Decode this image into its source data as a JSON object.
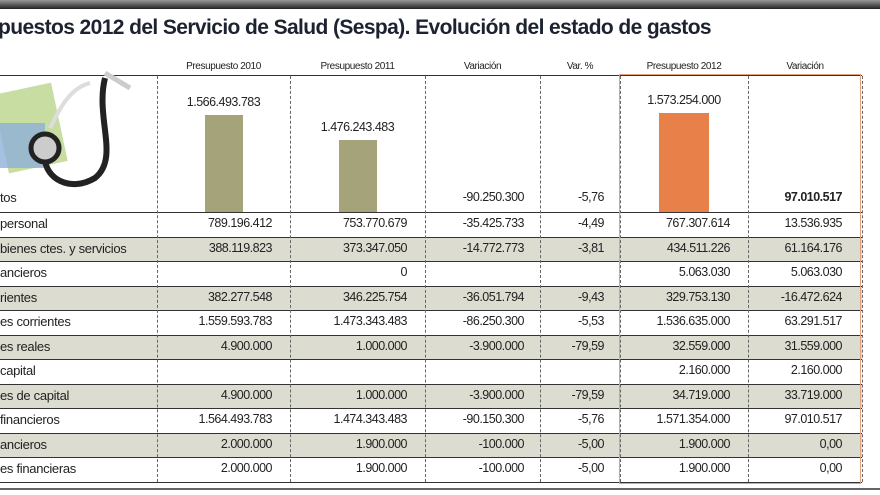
{
  "title": "puestos 2012 del Servicio de Salud (Sespa). Evolución del estado de gastos",
  "colors": {
    "bar_past": "#a5a37a",
    "bar_2012": "#e8804a",
    "row_alt": "#dcdcd0",
    "title": "#1c2230"
  },
  "image_icon": "stethoscope-and-money-icon",
  "chart_data": {
    "type": "table",
    "columns": [
      "Presupuesto 2010",
      "Presupuesto 2011",
      "Variación",
      "Var. %",
      "Presupuesto 2012",
      "Variación"
    ],
    "bars": {
      "type": "bar",
      "categories": [
        "Presupuesto 2010",
        "Presupuesto 2011",
        "Presupuesto 2012"
      ],
      "values": [
        1566493783,
        1476243483,
        1573254000
      ],
      "labels": [
        "1.566.493.783",
        "1.476.243.483",
        "1.573.254.000"
      ]
    },
    "total_row": {
      "label": "tos",
      "values": [
        "",
        "",
        "-90.250.300",
        "-5,76",
        "",
        "97.010.517"
      ]
    },
    "rows": [
      {
        "label": "personal",
        "values": [
          "789.196.412",
          "753.770.679",
          "-35.425.733",
          "-4,49",
          "767.307.614",
          "13.536.935"
        ]
      },
      {
        "label": "bienes ctes. y servicios",
        "values": [
          "388.119.823",
          "373.347.050",
          "-14.772.773",
          "-3,81",
          "434.511.226",
          "61.164.176"
        ]
      },
      {
        "label": "ancieros",
        "values": [
          "",
          "0",
          "",
          "",
          "5.063.030",
          "5.063.030"
        ]
      },
      {
        "label": "rientes",
        "values": [
          "382.277.548",
          "346.225.754",
          "-36.051.794",
          "-9,43",
          "329.753.130",
          "-16.472.624"
        ]
      },
      {
        "label": "es corrientes",
        "values": [
          "1.559.593.783",
          "1.473.343.483",
          "-86.250.300",
          "-5,53",
          "1.536.635.000",
          "63.291.517"
        ]
      },
      {
        "label": "es reales",
        "values": [
          "4.900.000",
          "1.000.000",
          "-3.900.000",
          "-79,59",
          "32.559.000",
          "31.559.000"
        ]
      },
      {
        "label": "capital",
        "values": [
          "",
          "",
          "",
          "",
          "2.160.000",
          "2.160.000"
        ]
      },
      {
        "label": "es de capital",
        "values": [
          "4.900.000",
          "1.000.000",
          "-3.900.000",
          "-79,59",
          "34.719.000",
          "33.719.000"
        ]
      },
      {
        "label": "financieros",
        "values": [
          "1.564.493.783",
          "1.474.343.483",
          "-90.150.300",
          "-5,76",
          "1.571.354.000",
          "97.010.517"
        ]
      },
      {
        "label": "ancieros",
        "values": [
          "2.000.000",
          "1.900.000",
          "-100.000",
          "-5,00",
          "1.900.000",
          "0,00"
        ]
      },
      {
        "label": "es financieras",
        "values": [
          "2.000.000",
          "1.900.000",
          "-100.000",
          "-5,00",
          "1.900.000",
          "0,00"
        ]
      }
    ]
  }
}
